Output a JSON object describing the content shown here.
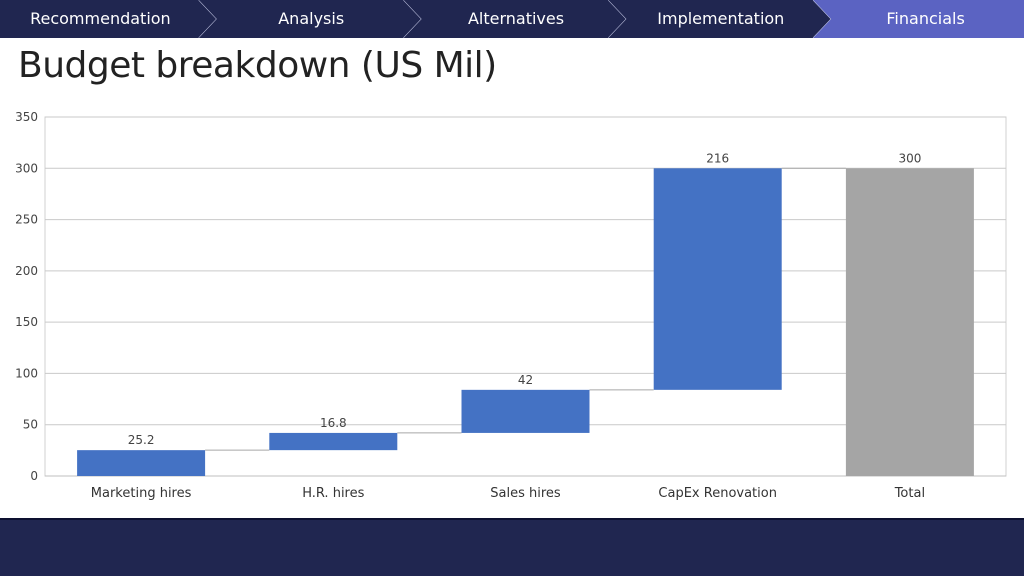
{
  "nav": {
    "tabs": [
      {
        "label": "Recommendation",
        "active": false
      },
      {
        "label": "Analysis",
        "active": false
      },
      {
        "label": "Alternatives",
        "active": false
      },
      {
        "label": "Implementation",
        "active": false
      },
      {
        "label": "Financials",
        "active": true
      }
    ],
    "colors": {
      "default": "#202650",
      "active": "#5b63c2",
      "separator": "#c8cbe8"
    }
  },
  "page": {
    "title": "Budget breakdown (US Mil)"
  },
  "chart_data": {
    "type": "bar",
    "subtype": "waterfall",
    "categories": [
      "Marketing hires",
      "H.R. hires",
      "Sales hires",
      "CapEx Renovation",
      "Total"
    ],
    "values": [
      25.2,
      16.8,
      42,
      216,
      300
    ],
    "data_labels": [
      "25.2",
      "16.8",
      "42",
      "216",
      "300"
    ],
    "bases": [
      0,
      25.2,
      42,
      84,
      0
    ],
    "is_total": [
      false,
      false,
      false,
      false,
      true
    ],
    "ylim": [
      0,
      350
    ],
    "yticks": [
      0,
      50,
      100,
      150,
      200,
      250,
      300,
      350
    ],
    "grid": true,
    "colors": {
      "increase": "#4472c4",
      "total": "#a5a5a5"
    }
  },
  "footer": {
    "color": "#202650"
  }
}
